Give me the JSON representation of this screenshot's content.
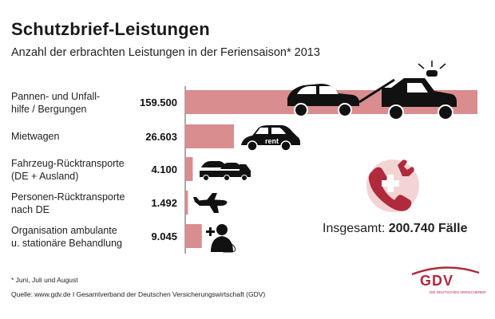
{
  "header": {
    "title": "Schutzbrief-Leistungen",
    "subtitle": "Anzahl der erbrachten Leistungen in der Feriensaison* 2013"
  },
  "chart_data": {
    "type": "bar",
    "orientation": "horizontal",
    "categories": [
      [
        "Pannen- und Unfall-",
        "hilfe / Bergungen"
      ],
      [
        "Mietwagen"
      ],
      [
        "Fahrzeug-Rücktransporte",
        "(DE + Ausland)"
      ],
      [
        "Personen-Rücktransporte",
        "nach DE"
      ],
      [
        "Organisation ambulante",
        "u. stationäre Behandlung"
      ]
    ],
    "values": [
      159500,
      26603,
      4100,
      1492,
      9045
    ],
    "value_labels": [
      "159.500",
      "26.603",
      "4.100",
      "1.492",
      "9.045"
    ],
    "bar_color": "#d98d8f",
    "icons": [
      "tow-truck-icon",
      "rental-car-icon",
      "car-transporter-icon",
      "airplane-icon",
      "medical-person-icon"
    ],
    "icon_texts": [
      "",
      "rent",
      "",
      "",
      ""
    ]
  },
  "total": {
    "label": "Insgesamt:",
    "value": "200.740 Fälle"
  },
  "footnote": "* Juni, Juli und August",
  "source": "Quelle: www.gdv.de I Gesamtverband der Deutschen Versicherungswirtschaft (GDV)",
  "logo": {
    "word": "GDV",
    "tagline": "DIE DEUTSCHEN VERSICHERER"
  },
  "colors": {
    "accent": "#b02a3c",
    "bar": "#d98d8f"
  }
}
